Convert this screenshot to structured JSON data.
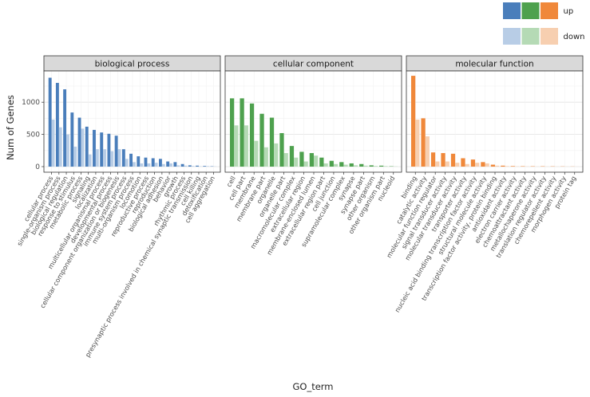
{
  "chart_data": {
    "type": "bar",
    "xlabel": "GO_term",
    "ylabel": "Num of Genes",
    "ylim": [
      0,
      1500
    ],
    "yticks": [
      0,
      500,
      1000
    ],
    "grid": true,
    "legend_position": "top-right",
    "legend_labels": [
      "up",
      "down"
    ],
    "colors": {
      "biological process": {
        "up": "#4a7ebb",
        "down": "#b8cde6"
      },
      "cellular component": {
        "up": "#4ea14e",
        "down": "#b5dab5"
      },
      "molecular function": {
        "up": "#f0883a",
        "down": "#f7cfb0"
      }
    },
    "panels": [
      {
        "name": "biological process",
        "categories": [
          "cellular process",
          "single-organism process",
          "biological regulation",
          "response to stimulus",
          "metabolic process",
          "signaling",
          "localization",
          "multicellular organismal process",
          "developmental process",
          "cellular component organization or biogenesis",
          "immune system process",
          "multi-organism process",
          "locomotion",
          "reproductive process",
          "reproduction",
          "biological adhesion",
          "behavior",
          "growth",
          "rhythmic process",
          "presynaptic process involved in chemical synaptic transmission",
          "cell killing",
          "detoxification",
          "cell aggregation"
        ],
        "series": [
          {
            "name": "up",
            "values": [
              1380,
              1300,
              1200,
              840,
              760,
              620,
              570,
              530,
              510,
              480,
              270,
              200,
              160,
              140,
              130,
              120,
              80,
              70,
              40,
              20,
              15,
              10,
              5
            ]
          },
          {
            "name": "down",
            "values": [
              730,
              610,
              500,
              310,
              590,
              190,
              270,
              270,
              240,
              270,
              120,
              70,
              50,
              50,
              60,
              40,
              50,
              20,
              15,
              10,
              5,
              8,
              3
            ]
          }
        ]
      },
      {
        "name": "cellular component",
        "categories": [
          "cell",
          "cell part",
          "membrane",
          "membrane part",
          "organelle",
          "organelle part",
          "macromolecular complex",
          "extracellular region",
          "membrane-enclosed lumen",
          "extracellular region part",
          "cell junction",
          "supramolecular complex",
          "synapse",
          "synapse part",
          "other organism",
          "other organism part",
          "nucleoid"
        ],
        "series": [
          {
            "name": "up",
            "values": [
              1060,
              1060,
              980,
              820,
              760,
              520,
              320,
              230,
              210,
              140,
              90,
              70,
              50,
              40,
              20,
              15,
              5
            ]
          },
          {
            "name": "down",
            "values": [
              640,
              640,
              400,
              300,
              360,
              210,
              140,
              80,
              170,
              50,
              40,
              30,
              20,
              15,
              10,
              8,
              3
            ]
          }
        ]
      },
      {
        "name": "molecular function",
        "categories": [
          "binding",
          "catalytic activity",
          "molecular function regulator",
          "signal transducer activity",
          "molecular transducer activity",
          "transporter activity",
          "nucleic acid binding transcription factor activity",
          "structural molecule activity",
          "transcription factor activity, protein binding",
          "antioxidant activity",
          "electron carrier activity",
          "chemoattractant activity",
          "metallochaperone activity",
          "translation regulator activity",
          "chemorepellent activity",
          "morphogen activity",
          "protein tag"
        ],
        "series": [
          {
            "name": "up",
            "values": [
              1410,
              750,
              220,
              210,
              200,
              130,
              110,
              70,
              30,
              15,
              8,
              6,
              5,
              5,
              4,
              3,
              2
            ]
          },
          {
            "name": "down",
            "values": [
              730,
              470,
              80,
              80,
              60,
              40,
              60,
              50,
              15,
              8,
              4,
              3,
              2,
              2,
              2,
              2,
              1
            ]
          }
        ]
      }
    ]
  }
}
